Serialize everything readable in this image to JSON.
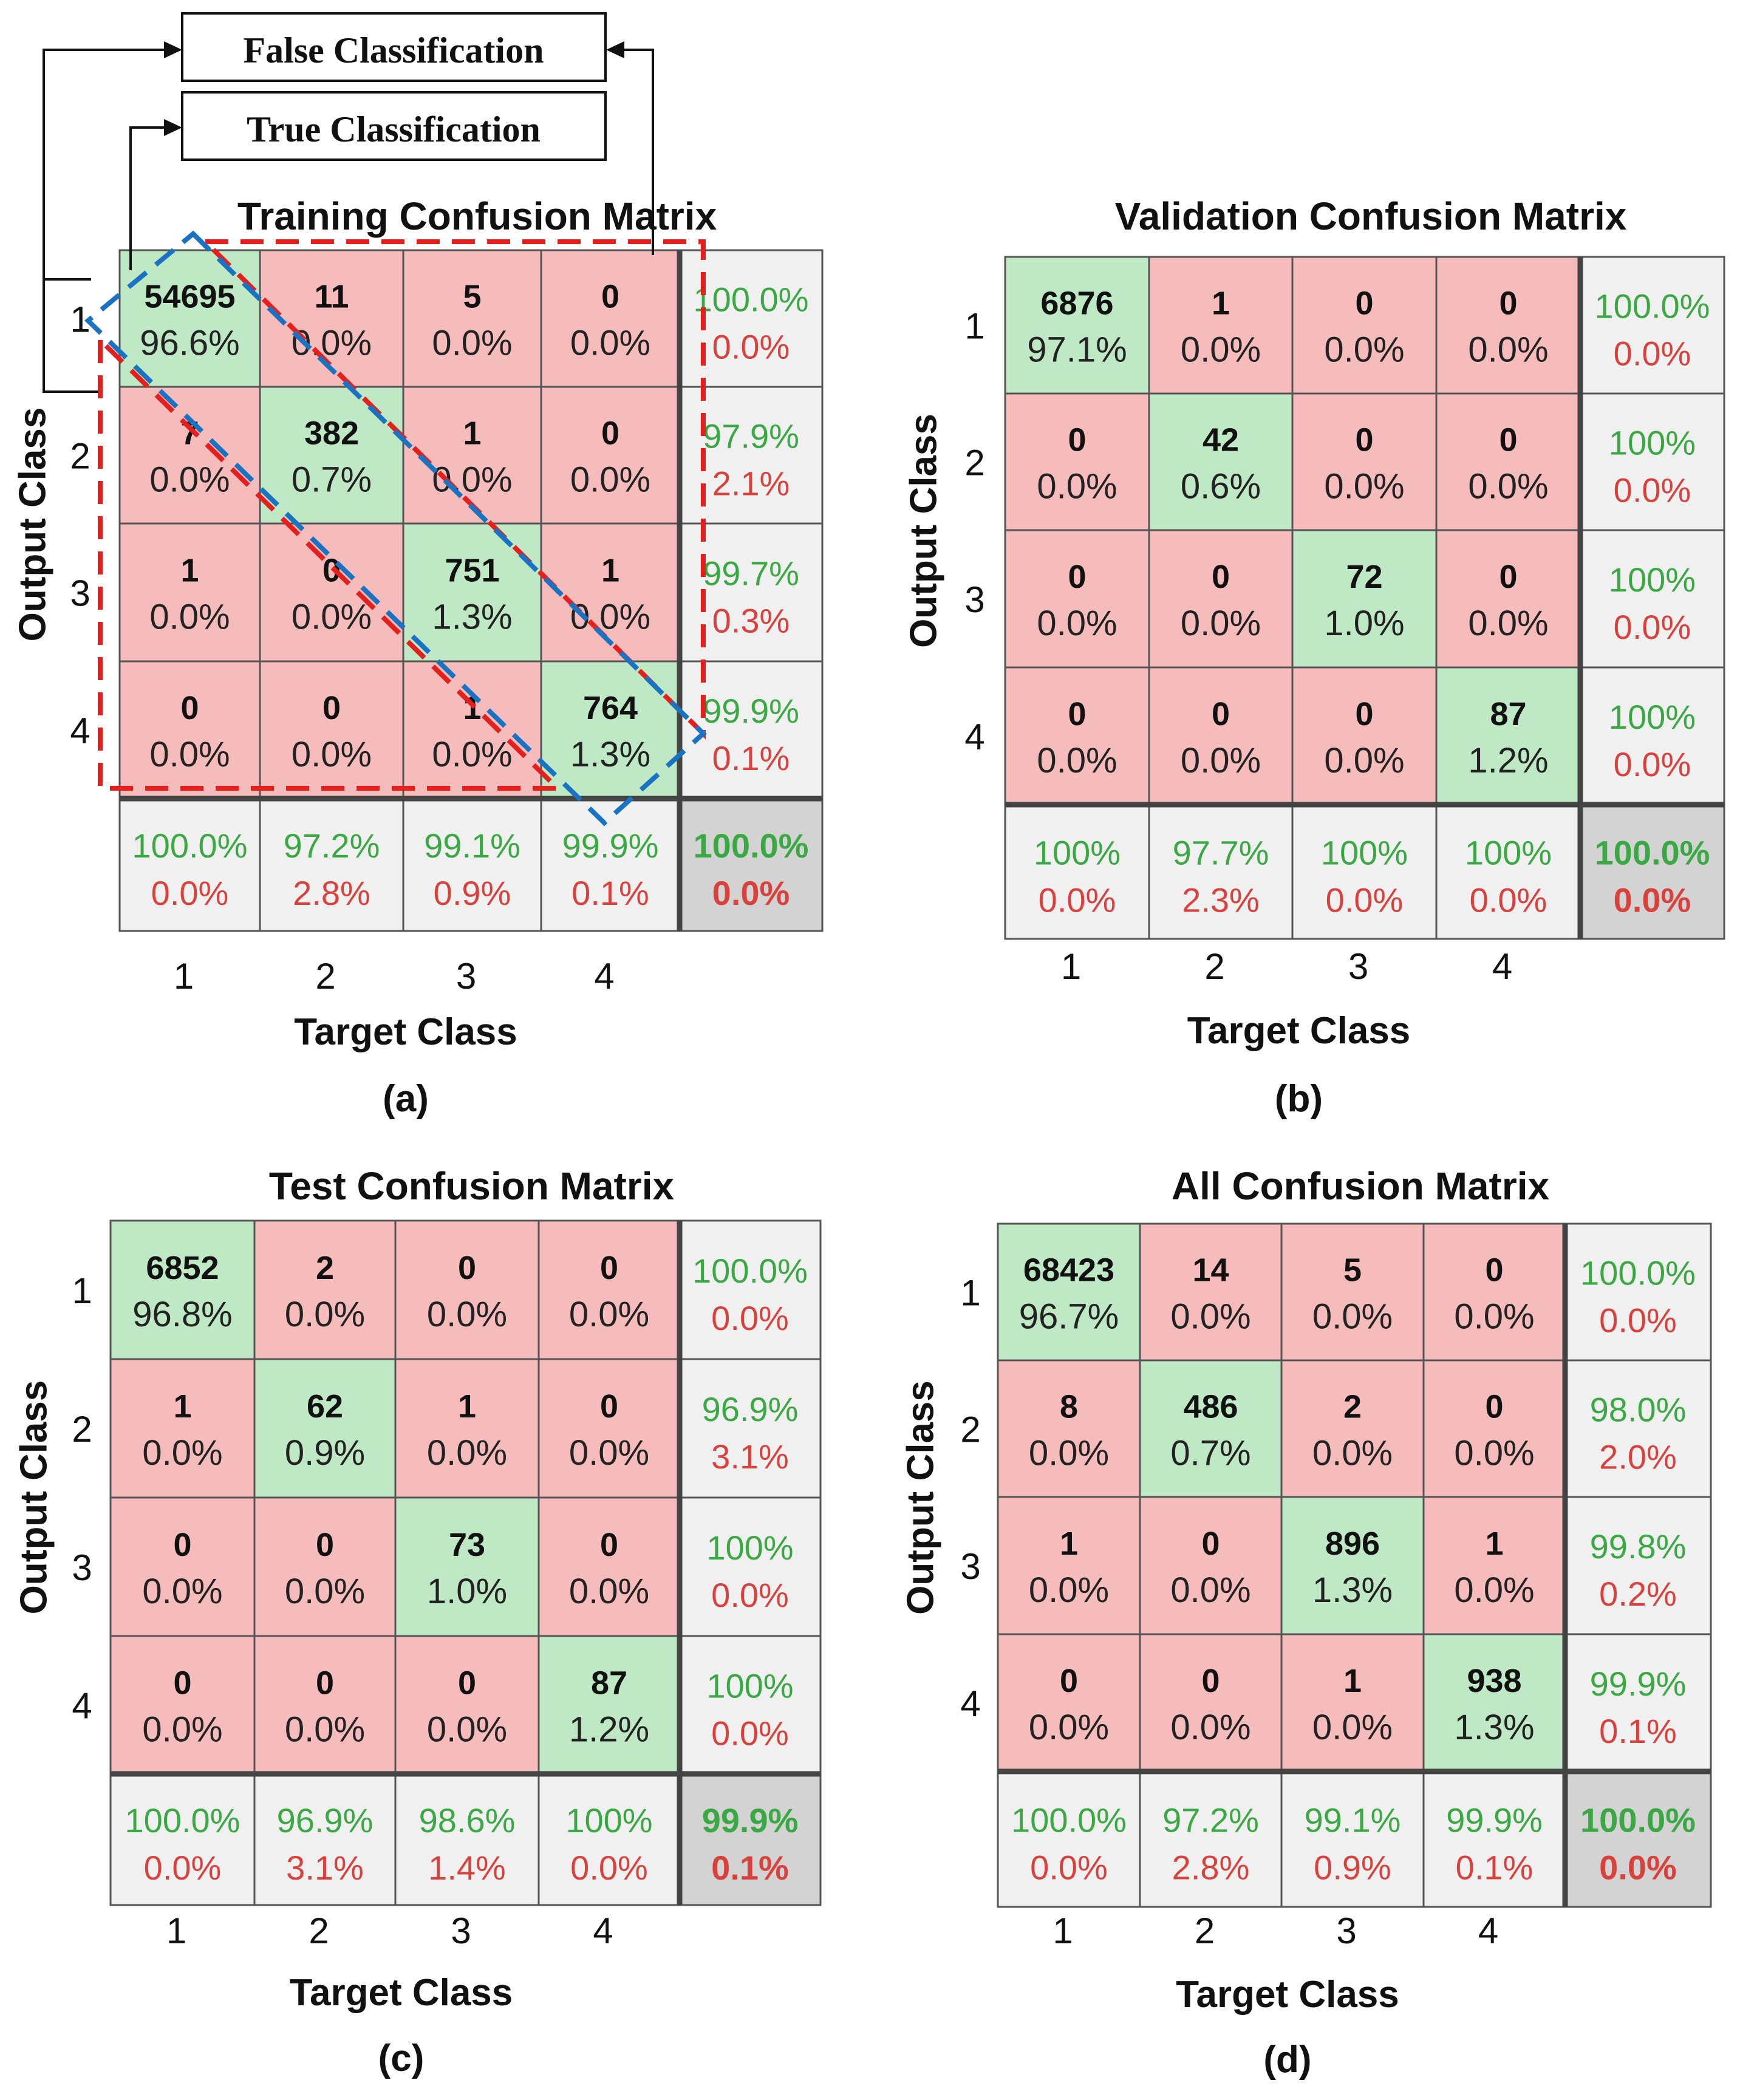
{
  "legend": {
    "false_classification": "False Classification",
    "true_classification": "True Classification"
  },
  "colors": {
    "correct_cell": "#bfe8c4",
    "wrong_cell": "#f6bcbb",
    "summary_cell": "#f0f0f0",
    "total_cell": "#d3d3d3",
    "green_text": "#3aa843",
    "red_text": "#d9413d",
    "grid_line": "#555555",
    "red_dashed": "#e3201d",
    "blue_dashed": "#1a72c2"
  },
  "chart_data": [
    {
      "type": "table",
      "panel_label": "(a)",
      "title": "Training Confusion Matrix",
      "xlabel": "Target Class",
      "ylabel": "Output Class",
      "class_labels": [
        "1",
        "2",
        "3",
        "4"
      ],
      "counts": [
        [
          54695,
          11,
          5,
          0
        ],
        [
          7,
          382,
          1,
          0
        ],
        [
          1,
          0,
          751,
          1
        ],
        [
          0,
          0,
          1,
          764
        ]
      ],
      "percents": [
        [
          "96.6%",
          "0.0%",
          "0.0%",
          "0.0%"
        ],
        [
          "0.0%",
          "0.7%",
          "0.0%",
          "0.0%"
        ],
        [
          "0.0%",
          "0.0%",
          "1.3%",
          "0.0%"
        ],
        [
          "0.0%",
          "0.0%",
          "0.0%",
          "1.3%"
        ]
      ],
      "row_summary": [
        [
          "100.0%",
          "0.0%"
        ],
        [
          "97.9%",
          "2.1%"
        ],
        [
          "99.7%",
          "0.3%"
        ],
        [
          "99.9%",
          "0.1%"
        ]
      ],
      "col_summary": [
        [
          "100.0%",
          "0.0%"
        ],
        [
          "97.2%",
          "2.8%"
        ],
        [
          "99.1%",
          "0.9%"
        ],
        [
          "99.9%",
          "0.1%"
        ]
      ],
      "total": [
        "100.0%",
        "0.0%"
      ]
    },
    {
      "type": "table",
      "panel_label": "(b)",
      "title": "Validation Confusion Matrix",
      "xlabel": "Target Class",
      "ylabel": "Output Class",
      "class_labels": [
        "1",
        "2",
        "3",
        "4"
      ],
      "counts": [
        [
          6876,
          1,
          0,
          0
        ],
        [
          0,
          42,
          0,
          0
        ],
        [
          0,
          0,
          72,
          0
        ],
        [
          0,
          0,
          0,
          87
        ]
      ],
      "percents": [
        [
          "97.1%",
          "0.0%",
          "0.0%",
          "0.0%"
        ],
        [
          "0.0%",
          "0.6%",
          "0.0%",
          "0.0%"
        ],
        [
          "0.0%",
          "0.0%",
          "1.0%",
          "0.0%"
        ],
        [
          "0.0%",
          "0.0%",
          "0.0%",
          "1.2%"
        ]
      ],
      "row_summary": [
        [
          "100.0%",
          "0.0%"
        ],
        [
          "100%",
          "0.0%"
        ],
        [
          "100%",
          "0.0%"
        ],
        [
          "100%",
          "0.0%"
        ]
      ],
      "col_summary": [
        [
          "100%",
          "0.0%"
        ],
        [
          "97.7%",
          "2.3%"
        ],
        [
          "100%",
          "0.0%"
        ],
        [
          "100%",
          "0.0%"
        ]
      ],
      "total": [
        "100.0%",
        "0.0%"
      ]
    },
    {
      "type": "table",
      "panel_label": "(c)",
      "title": "Test Confusion Matrix",
      "xlabel": "Target Class",
      "ylabel": "Output Class",
      "class_labels": [
        "1",
        "2",
        "3",
        "4"
      ],
      "counts": [
        [
          6852,
          2,
          0,
          0
        ],
        [
          1,
          62,
          1,
          0
        ],
        [
          0,
          0,
          73,
          0
        ],
        [
          0,
          0,
          0,
          87
        ]
      ],
      "percents": [
        [
          "96.8%",
          "0.0%",
          "0.0%",
          "0.0%"
        ],
        [
          "0.0%",
          "0.9%",
          "0.0%",
          "0.0%"
        ],
        [
          "0.0%",
          "0.0%",
          "1.0%",
          "0.0%"
        ],
        [
          "0.0%",
          "0.0%",
          "0.0%",
          "1.2%"
        ]
      ],
      "row_summary": [
        [
          "100.0%",
          "0.0%"
        ],
        [
          "96.9%",
          "3.1%"
        ],
        [
          "100%",
          "0.0%"
        ],
        [
          "100%",
          "0.0%"
        ]
      ],
      "col_summary": [
        [
          "100.0%",
          "0.0%"
        ],
        [
          "96.9%",
          "3.1%"
        ],
        [
          "98.6%",
          "1.4%"
        ],
        [
          "100%",
          "0.0%"
        ]
      ],
      "total": [
        "99.9%",
        "0.1%"
      ]
    },
    {
      "type": "table",
      "panel_label": "(d)",
      "title": "All Confusion Matrix",
      "xlabel": "Target Class",
      "ylabel": "Output Class",
      "class_labels": [
        "1",
        "2",
        "3",
        "4"
      ],
      "counts": [
        [
          68423,
          14,
          5,
          0
        ],
        [
          8,
          486,
          2,
          0
        ],
        [
          1,
          0,
          896,
          1
        ],
        [
          0,
          0,
          1,
          938
        ]
      ],
      "percents": [
        [
          "96.7%",
          "0.0%",
          "0.0%",
          "0.0%"
        ],
        [
          "0.0%",
          "0.7%",
          "0.0%",
          "0.0%"
        ],
        [
          "0.0%",
          "0.0%",
          "1.3%",
          "0.0%"
        ],
        [
          "0.0%",
          "0.0%",
          "0.0%",
          "1.3%"
        ]
      ],
      "row_summary": [
        [
          "100.0%",
          "0.0%"
        ],
        [
          "98.0%",
          "2.0%"
        ],
        [
          "99.8%",
          "0.2%"
        ],
        [
          "99.9%",
          "0.1%"
        ]
      ],
      "col_summary": [
        [
          "100.0%",
          "0.0%"
        ],
        [
          "97.2%",
          "2.8%"
        ],
        [
          "99.1%",
          "0.9%"
        ],
        [
          "99.9%",
          "0.1%"
        ]
      ],
      "total": [
        "100.0%",
        "0.0%"
      ]
    }
  ]
}
